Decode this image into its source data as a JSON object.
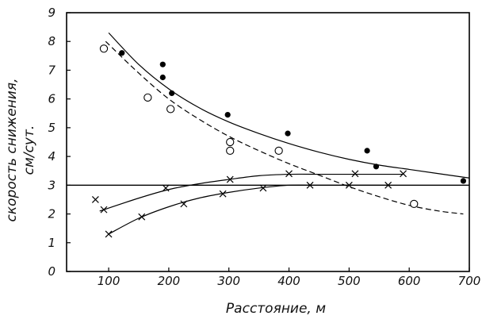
{
  "chart_data": {
    "type": "scatter",
    "title": "",
    "xlabel": "Расстояние, м",
    "ylabel_lines": [
      "скорость снижения,",
      "см/сут."
    ],
    "xlim": [
      30,
      700
    ],
    "ylim": [
      0,
      9
    ],
    "xticks": [
      "100",
      "200",
      "300",
      "400",
      "500",
      "600",
      "700"
    ],
    "yticks": [
      "0",
      "1",
      "2",
      "3",
      "4",
      "5",
      "6",
      "7",
      "8",
      "9"
    ],
    "grid": {
      "horizontal_at": [
        3
      ]
    },
    "series": [
      {
        "marker": "filled-circle",
        "points": [
          [
            122,
            7.6
          ],
          [
            190,
            7.2
          ],
          [
            190,
            6.75
          ],
          [
            205,
            6.2
          ],
          [
            298,
            5.45
          ],
          [
            398,
            4.8
          ],
          [
            530,
            4.2
          ],
          [
            545,
            3.65
          ],
          [
            690,
            3.15
          ]
        ],
        "fit": {
          "style": "solid",
          "points": [
            [
              100,
              8.3
            ],
            [
              150,
              7.2
            ],
            [
              200,
              6.35
            ],
            [
              250,
              5.7
            ],
            [
              300,
              5.2
            ],
            [
              350,
              4.8
            ],
            [
              400,
              4.45
            ],
            [
              450,
              4.15
            ],
            [
              500,
              3.9
            ],
            [
              550,
              3.7
            ],
            [
              600,
              3.55
            ],
            [
              650,
              3.4
            ],
            [
              700,
              3.25
            ]
          ]
        }
      },
      {
        "marker": "open-circle",
        "points": [
          [
            92,
            7.75
          ],
          [
            165,
            6.05
          ],
          [
            203,
            5.65
          ],
          [
            302,
            4.5
          ],
          [
            302,
            4.2
          ],
          [
            383,
            4.2
          ],
          [
            608,
            2.35
          ]
        ],
        "fit": {
          "style": "dashed",
          "points": [
            [
              95,
              8.0
            ],
            [
              150,
              6.9
            ],
            [
              200,
              6.0
            ],
            [
              250,
              5.3
            ],
            [
              300,
              4.7
            ],
            [
              350,
              4.2
            ],
            [
              400,
              3.75
            ],
            [
              450,
              3.35
            ],
            [
              500,
              2.95
            ],
            [
              550,
              2.6
            ],
            [
              600,
              2.3
            ],
            [
              650,
              2.1
            ],
            [
              690,
              2.0
            ]
          ]
        }
      },
      {
        "marker": "x",
        "points": [
          [
            78,
            2.5
          ],
          [
            92,
            2.15
          ],
          [
            195,
            2.9
          ],
          [
            302,
            3.2
          ],
          [
            400,
            3.4
          ],
          [
            510,
            3.4
          ],
          [
            590,
            3.4
          ]
        ],
        "fit": {
          "style": "solid",
          "points": [
            [
              85,
              2.1
            ],
            [
              150,
              2.55
            ],
            [
              200,
              2.85
            ],
            [
              250,
              3.05
            ],
            [
              300,
              3.2
            ],
            [
              350,
              3.33
            ],
            [
              400,
              3.38
            ],
            [
              450,
              3.38
            ],
            [
              500,
              3.38
            ],
            [
              550,
              3.38
            ],
            [
              590,
              3.38
            ]
          ]
        }
      },
      {
        "marker": "x",
        "points": [
          [
            100,
            1.3
          ],
          [
            155,
            1.9
          ],
          [
            225,
            2.35
          ],
          [
            290,
            2.7
          ],
          [
            357,
            2.9
          ],
          [
            435,
            3.0
          ],
          [
            500,
            3.0
          ],
          [
            565,
            3.0
          ]
        ],
        "fit": {
          "style": "solid",
          "points": [
            [
              100,
              1.3
            ],
            [
              150,
              1.85
            ],
            [
              200,
              2.25
            ],
            [
              250,
              2.55
            ],
            [
              300,
              2.75
            ],
            [
              350,
              2.9
            ],
            [
              400,
              3.0
            ],
            [
              450,
              3.0
            ],
            [
              500,
              3.0
            ],
            [
              565,
              3.0
            ]
          ]
        }
      }
    ]
  }
}
